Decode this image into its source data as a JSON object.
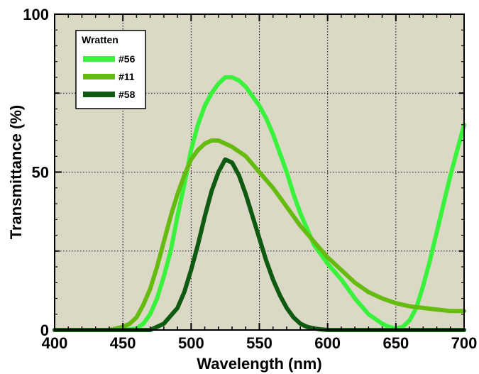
{
  "chart_data": {
    "type": "line",
    "title": "",
    "xlabel": "Wavelength (nm)",
    "ylabel": "Transmittance (%)",
    "xlim": [
      400,
      700
    ],
    "ylim": [
      0,
      100
    ],
    "x_ticks": [
      400,
      450,
      500,
      550,
      600,
      650,
      700
    ],
    "y_ticks": [
      0,
      50,
      100
    ],
    "x_tick_labels": [
      "400",
      "450",
      "500",
      "550",
      "600",
      "650",
      "700"
    ],
    "y_tick_labels": [
      "0",
      "50",
      "100"
    ],
    "grid": true,
    "legend": {
      "title": "Wratten",
      "position": "top-left"
    },
    "background_color": "#dcd8c6",
    "series": [
      {
        "name": "#56",
        "color": "#39f23c",
        "x": [
          400,
          450,
          460,
          465,
          470,
          475,
          480,
          485,
          490,
          495,
          500,
          505,
          510,
          515,
          520,
          525,
          530,
          535,
          540,
          545,
          550,
          555,
          560,
          565,
          570,
          575,
          580,
          585,
          590,
          595,
          600,
          610,
          620,
          630,
          640,
          645,
          650,
          655,
          660,
          665,
          670,
          675,
          680,
          685,
          690,
          695,
          700
        ],
        "y": [
          0,
          0,
          0.5,
          2,
          5,
          10,
          17,
          25,
          36,
          46,
          57,
          65,
          71,
          75,
          78,
          80,
          80,
          79,
          77,
          74,
          71,
          67,
          62,
          56,
          50,
          43,
          37,
          32,
          27,
          24,
          21,
          16,
          10,
          5,
          2,
          1,
          0.5,
          1,
          3,
          7,
          14,
          22,
          31,
          40,
          49,
          57,
          65
        ]
      },
      {
        "name": "#11",
        "color": "#66bb11",
        "x": [
          400,
          440,
          450,
          455,
          460,
          465,
          470,
          475,
          480,
          485,
          490,
          495,
          500,
          505,
          510,
          515,
          520,
          525,
          530,
          540,
          550,
          560,
          570,
          580,
          590,
          600,
          610,
          620,
          630,
          640,
          650,
          660,
          670,
          680,
          690,
          700
        ],
        "y": [
          0,
          0,
          1,
          2,
          4,
          8,
          13,
          20,
          28,
          36,
          43,
          49,
          54,
          57,
          59,
          60,
          60,
          59,
          58,
          55,
          50,
          45,
          39,
          33,
          28,
          23,
          19,
          15,
          12,
          10,
          8.5,
          7.5,
          7,
          6.5,
          6,
          6
        ]
      },
      {
        "name": "#58",
        "color": "#0d5a10",
        "x": [
          400,
          470,
          480,
          490,
          495,
          500,
          505,
          510,
          515,
          520,
          525,
          530,
          535,
          540,
          545,
          550,
          555,
          560,
          565,
          570,
          575,
          580,
          585,
          590,
          595,
          600,
          610,
          620,
          700
        ],
        "y": [
          0,
          0,
          2,
          7,
          12,
          19,
          27,
          36,
          44,
          50,
          54,
          53,
          49,
          43,
          36,
          29,
          22,
          16,
          11,
          7,
          4,
          2,
          1,
          0.5,
          0.2,
          0,
          0,
          0,
          0
        ]
      }
    ]
  }
}
